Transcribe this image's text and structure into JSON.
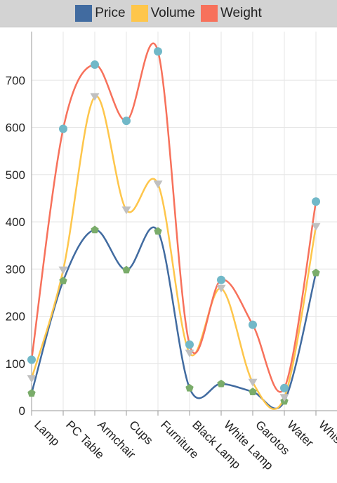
{
  "chart_data": {
    "type": "line",
    "categories": [
      "Lamp",
      "PC Table",
      "Armchair",
      "Cups",
      "Furniture",
      "Black Lamp",
      "White Lamp",
      "Garotos",
      "Water",
      "Whisky"
    ],
    "series": [
      {
        "name": "Price",
        "color": "#416ba0",
        "marker": "pentagon",
        "marker_color": "#7aac6a",
        "values": [
          37,
          275,
          383,
          298,
          380,
          48,
          57,
          40,
          20,
          292
        ]
      },
      {
        "name": "Volume",
        "color": "#fec64b",
        "marker": "triangle-down",
        "marker_color": "#c0c0c0",
        "values": [
          68,
          298,
          665,
          425,
          480,
          122,
          259,
          60,
          28,
          390
        ]
      },
      {
        "name": "Weight",
        "color": "#f7715b",
        "marker": "circle",
        "marker_color": "#71b8c8",
        "values": [
          108,
          597,
          733,
          614,
          761,
          140,
          277,
          182,
          48,
          443
        ]
      }
    ],
    "yticks": [
      0,
      100,
      200,
      300,
      400,
      500,
      600,
      700
    ],
    "ylim": [
      0,
      800
    ],
    "grid": true,
    "legend_position": "top-center",
    "curve": "smooth"
  }
}
